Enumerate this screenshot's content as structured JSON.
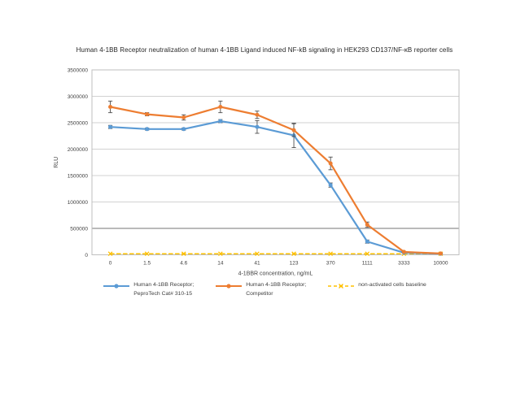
{
  "page": {
    "background": "#ffffff"
  },
  "chart_data": {
    "type": "line",
    "title": "Human 4-1BB Receptor neutralization of human 4-1BB Ligand induced NF-kB signaling in HEK293 CD137/NF-κB reporter cells",
    "xlabel": "4-1BBR concentration, ng/mL",
    "ylabel": "RLU",
    "ylim": [
      0,
      3500000
    ],
    "y_ticks": [
      0,
      500000,
      1000000,
      1500000,
      2000000,
      2500000,
      3000000,
      3500000
    ],
    "categories": [
      "0",
      "1.5",
      "4.6",
      "14",
      "41",
      "123",
      "370",
      "1111",
      "3333",
      "10000"
    ],
    "grid": true,
    "legend_position": "bottom",
    "series": [
      {
        "label_lines": [
          "Human 4-1BB Receptor;",
          "PeproTech Cat# 310-15"
        ],
        "color": "#5B9BD5",
        "marker": "circle",
        "dash": "solid",
        "z": 1,
        "values": [
          2420000,
          2380000,
          2380000,
          2530000,
          2420000,
          2260000,
          1320000,
          250000,
          40000,
          20000
        ],
        "errors": [
          30000,
          20000,
          20000,
          30000,
          120000,
          230000,
          40000,
          30000,
          8000,
          8000
        ]
      },
      {
        "label_lines": [
          "Human 4-1BB Receptor;",
          "Competitor"
        ],
        "color": "#ED7D31",
        "marker": "circle",
        "dash": "solid",
        "z": 2,
        "values": [
          2800000,
          2660000,
          2600000,
          2800000,
          2650000,
          2360000,
          1730000,
          570000,
          55000,
          25000
        ],
        "errors": [
          110000,
          30000,
          50000,
          110000,
          70000,
          120000,
          120000,
          50000,
          10000,
          8000
        ]
      },
      {
        "label_lines": [
          "non-activated cells baseline"
        ],
        "color": "#FFC000",
        "marker": "x",
        "dash": "dashed",
        "z": 0,
        "values": [
          20000,
          20000,
          20000,
          20000,
          20000,
          20000,
          20000,
          20000,
          20000,
          20000
        ],
        "errors": [
          0,
          0,
          0,
          0,
          0,
          0,
          0,
          0,
          0,
          0
        ]
      }
    ]
  }
}
